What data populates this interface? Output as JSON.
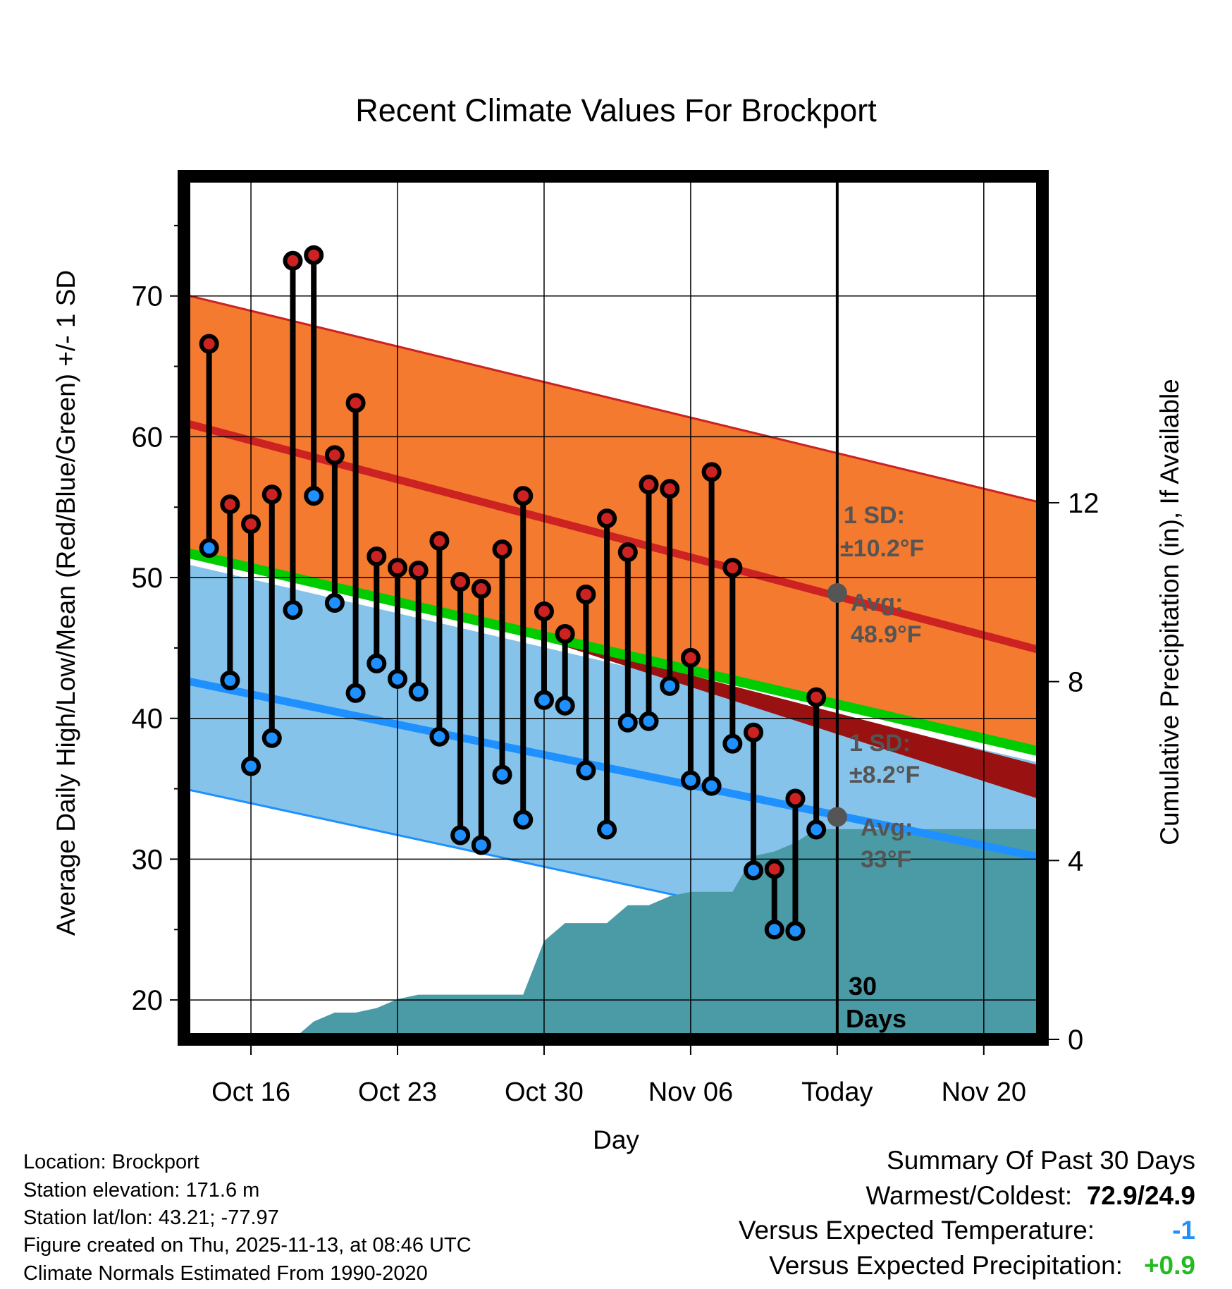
{
  "chart_data": {
    "type": "line",
    "title": "Recent Climate Values For Brockport",
    "xlabel": "Day",
    "ylabel": "Average Daily High/Low/Mean (Red/Blue/Green) +/- 1 SD",
    "y2label": "Cumulative Precipitation (in), If Available",
    "ylim": [
      17.2,
      78.5
    ],
    "y2lim": [
      0,
      19.3
    ],
    "yticks": [
      20,
      30,
      40,
      50,
      60,
      70
    ],
    "y2ticks": [
      0,
      4,
      8,
      12
    ],
    "xlim": [
      -3.2,
      37.8
    ],
    "xticks": [
      {
        "day": 0,
        "label": "Oct 16"
      },
      {
        "day": 7,
        "label": "Oct 23"
      },
      {
        "day": 14,
        "label": "Oct 30"
      },
      {
        "day": 21,
        "label": "Nov 06"
      },
      {
        "day": 28,
        "label": "Today"
      },
      {
        "day": 35,
        "label": "Nov 20"
      }
    ],
    "today_day": 28,
    "days": [
      -2,
      -1,
      0,
      1,
      2,
      3,
      4,
      5,
      6,
      7,
      8,
      9,
      10,
      11,
      12,
      13,
      14,
      15,
      16,
      17,
      18,
      19,
      20,
      21,
      22,
      23,
      24,
      25,
      26,
      27
    ],
    "highs": [
      66.6,
      55.2,
      53.8,
      55.9,
      72.5,
      72.9,
      58.7,
      62.4,
      51.5,
      50.7,
      50.5,
      52.6,
      49.7,
      49.2,
      52.0,
      55.8,
      47.6,
      46.0,
      48.8,
      54.2,
      51.8,
      56.6,
      56.3,
      44.3,
      57.5,
      50.7,
      39.0,
      29.3,
      34.3,
      41.5
    ],
    "lows": [
      52.1,
      42.7,
      36.6,
      38.6,
      47.7,
      55.8,
      48.2,
      41.8,
      43.9,
      42.8,
      41.9,
      38.7,
      31.7,
      31.0,
      36.0,
      32.8,
      41.3,
      40.9,
      36.3,
      32.1,
      39.7,
      39.8,
      42.3,
      35.6,
      35.2,
      38.2,
      29.2,
      25.0,
      24.9,
      32.1
    ],
    "normal_high": {
      "start": 61.0,
      "end": 44.8
    },
    "normal_high_upper": {
      "start": 70.1,
      "end": 55.3
    },
    "normal_low": {
      "start": 42.7,
      "end": 30.1
    },
    "normal_low_lower": {
      "start": 35.0,
      "end": 21.8
    },
    "normal_mean_start": 51.8,
    "normal_mean_end": 37.6,
    "precip_cumulative": [
      [
        2,
        0.0
      ],
      [
        3,
        0.4
      ],
      [
        4,
        0.6
      ],
      [
        5,
        0.6
      ],
      [
        6,
        0.7
      ],
      [
        7,
        0.9
      ],
      [
        8,
        1.0
      ],
      [
        9,
        1.0
      ],
      [
        10,
        1.0
      ],
      [
        11,
        1.0
      ],
      [
        12,
        1.0
      ],
      [
        13,
        1.0
      ],
      [
        14,
        2.2
      ],
      [
        15,
        2.6
      ],
      [
        16,
        2.6
      ],
      [
        17,
        2.6
      ],
      [
        18,
        3.0
      ],
      [
        19,
        3.0
      ],
      [
        20,
        3.2
      ],
      [
        21,
        3.3
      ],
      [
        22,
        3.3
      ],
      [
        23,
        3.3
      ],
      [
        24,
        4.1
      ],
      [
        25,
        4.2
      ],
      [
        26,
        4.4
      ],
      [
        27,
        4.7
      ],
      [
        28,
        4.7
      ],
      [
        37.8,
        4.7
      ]
    ],
    "annotations": {
      "high_sd_line1": "1 SD:",
      "high_sd_line2": "±10.2°F",
      "high_avg_line1": "Avg:",
      "high_avg_line2": "48.9°F",
      "high_avg_value": 48.9,
      "low_sd_line1": "1 SD:",
      "low_sd_line2": "±8.2°F",
      "low_avg_line1": "Avg:",
      "low_avg_line2": "33°F",
      "low_avg_value": 33,
      "days_line1": "30",
      "days_line2": "Days"
    },
    "colors": {
      "high_band": "#f47a2f",
      "high_line": "#cc2222",
      "low_band": "#85c3ea",
      "low_line": "#1e90ff",
      "mean_line": "#00cc00",
      "gap_band": "#991111",
      "precip": "#4a9ba5",
      "high_marker": "#cc2222",
      "low_marker": "#1e90ff",
      "annotation": "#555555"
    }
  },
  "info": {
    "location": "Location: Brockport",
    "elevation": "Station elevation: 171.6 m",
    "latlon": "Station lat/lon: 43.21; -77.97",
    "created": "Figure created on Thu, 2025-11-13, at 08:46 UTC",
    "normals": "Climate Normals Estimated From 1990-2020"
  },
  "summary": {
    "title": "Summary Of Past 30 Days",
    "warm_label": "Warmest/Coldest:",
    "warm_value": "72.9/24.9",
    "temp_label": "Versus Expected Temperature:",
    "temp_value": "-1",
    "temp_color": "#1e90ff",
    "precip_label": "Versus Expected Precipitation:",
    "precip_value": "+0.9",
    "precip_color": "#22bb22"
  }
}
